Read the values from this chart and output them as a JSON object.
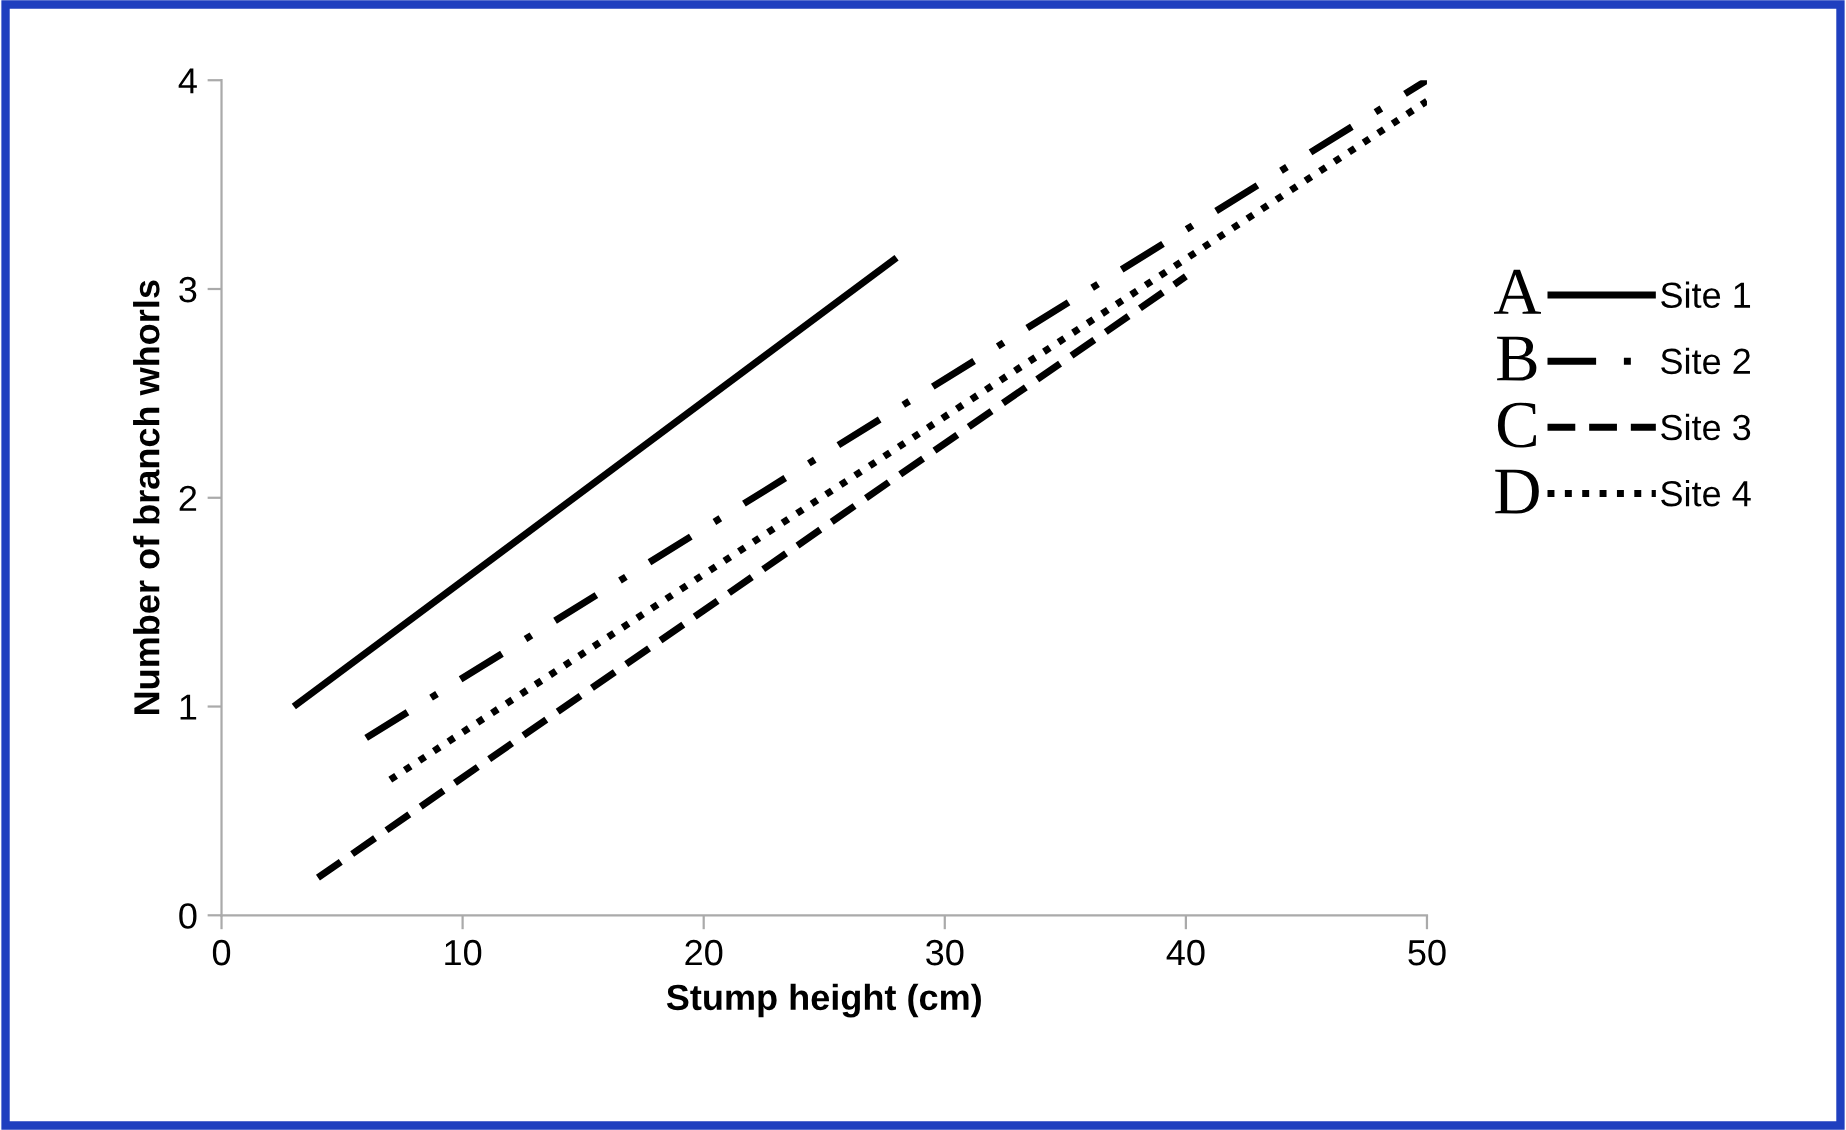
{
  "chart_data": {
    "type": "line",
    "xlabel": "Stump height (cm)",
    "ylabel": "Number of branch whorls",
    "xlim": [
      0,
      50
    ],
    "xticks": [
      0,
      10,
      20,
      30,
      40,
      50
    ],
    "ylim": [
      0,
      4
    ],
    "yticks": [
      0,
      1,
      2,
      3,
      4
    ],
    "grid": false,
    "legend": "right",
    "marker": "none",
    "annotations": [
      "A",
      "B",
      "C",
      "D"
    ],
    "series": [
      {
        "name": "Site 1",
        "color": "#000000",
        "line_style": "solid",
        "x": [
          3,
          28
        ],
        "values": [
          1.0,
          3.15
        ]
      },
      {
        "name": "Site 2",
        "color": "#000000",
        "line_style": "dashdot",
        "x": [
          6,
          50
        ],
        "values": [
          0.85,
          4.0
        ]
      },
      {
        "name": "Site 3",
        "color": "#000000",
        "line_style": "dashed",
        "x": [
          4,
          40
        ],
        "values": [
          0.18,
          3.06
        ]
      },
      {
        "name": "Site 4",
        "color": "#000000",
        "line_style": "dotted",
        "x": [
          7,
          50
        ],
        "values": [
          0.65,
          3.9
        ]
      }
    ]
  }
}
